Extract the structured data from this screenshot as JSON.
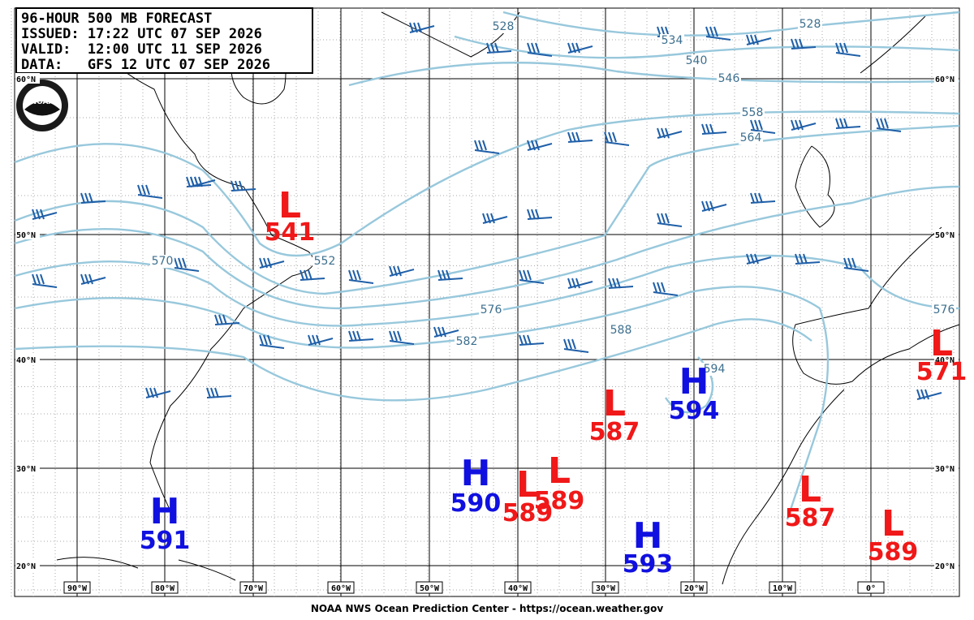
{
  "header": {
    "lines": [
      "96-HOUR 500 MB FORECAST",
      "ISSUED: 17:22 UTC 07 SEP 2026",
      "VALID:  12:00 UTC 11 SEP 2026",
      "DATA:   GFS 12 UTC 07 SEP 2026"
    ]
  },
  "logo": "NOAA",
  "latitude_labels": [
    "60°N",
    "50°N",
    "40°N",
    "30°N",
    "20°N"
  ],
  "longitude_labels": [
    "90°W",
    "80°W",
    "70°W",
    "60°W",
    "50°W",
    "40°W",
    "30°W",
    "20°W",
    "10°W",
    "0°"
  ],
  "pressure_systems": [
    {
      "type": "L",
      "value": 541
    },
    {
      "type": "H",
      "value": 591
    },
    {
      "type": "H",
      "value": 590
    },
    {
      "type": "L",
      "value": 589
    },
    {
      "type": "L",
      "value": 589
    },
    {
      "type": "L",
      "value": 587
    },
    {
      "type": "H",
      "value": 594
    },
    {
      "type": "H",
      "value": 593
    },
    {
      "type": "L",
      "value": 587
    },
    {
      "type": "L",
      "value": 589
    },
    {
      "type": "L",
      "value": 571
    }
  ],
  "contour_labels": [
    528,
    528,
    534,
    540,
    546,
    558,
    564,
    570,
    552,
    576,
    582,
    588,
    594,
    576
  ],
  "footer": "NOAA NWS Ocean Prediction Center - https://ocean.weather.gov"
}
